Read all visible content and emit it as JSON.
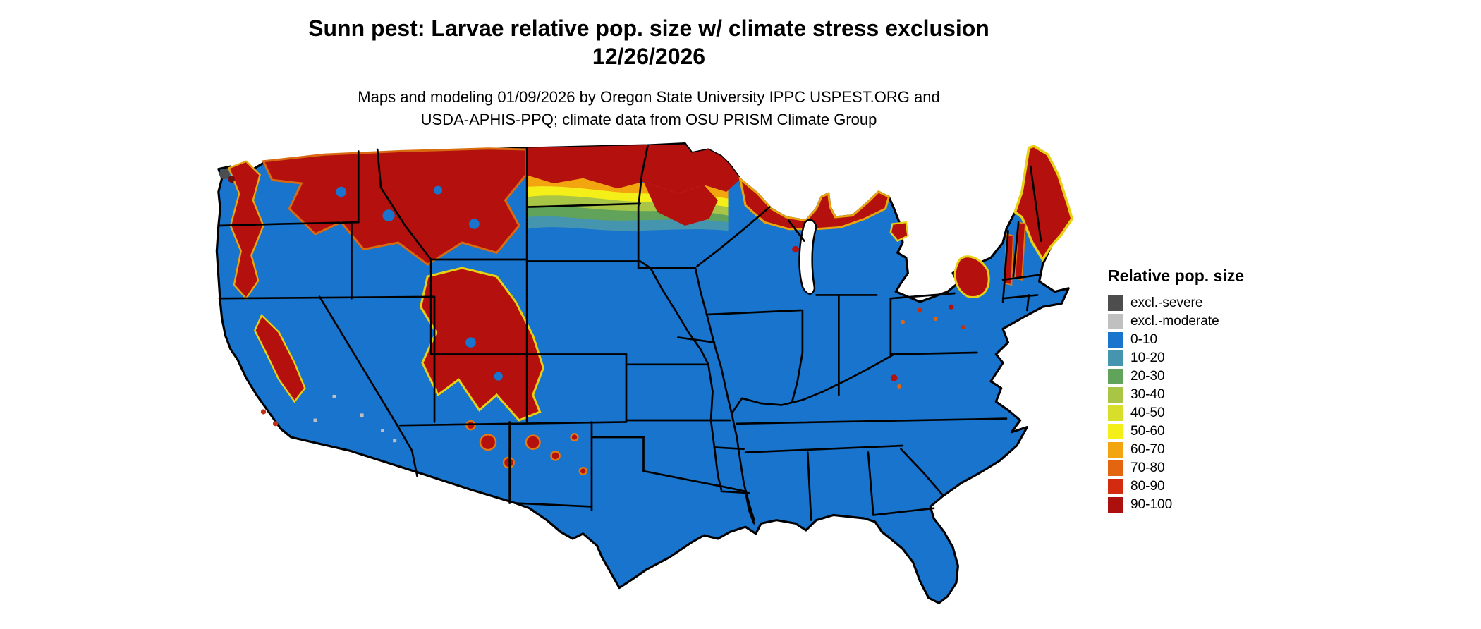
{
  "title": {
    "line1": "Sunn pest: Larvae relative pop. size w/ climate stress exclusion",
    "line2": "12/26/2026"
  },
  "subtitle": {
    "line1": "Maps and modeling 01/09/2026 by Oregon State University IPPC USPEST.ORG and",
    "line2": "USDA-APHIS-PPQ; climate data from OSU PRISM Climate Group"
  },
  "legend": {
    "title": "Relative pop. size",
    "items": [
      {
        "label": "excl.-severe",
        "color": "#4d4d4d"
      },
      {
        "label": "excl.-moderate",
        "color": "#c0c0c0"
      },
      {
        "label": "0-10",
        "color": "#1874cd"
      },
      {
        "label": "10-20",
        "color": "#4695af"
      },
      {
        "label": "20-30",
        "color": "#62a35b"
      },
      {
        "label": "30-40",
        "color": "#a8c545"
      },
      {
        "label": "40-50",
        "color": "#d7df2b"
      },
      {
        "label": "50-60",
        "color": "#f4ee19"
      },
      {
        "label": "60-70",
        "color": "#f2a50e"
      },
      {
        "label": "70-80",
        "color": "#e4650f"
      },
      {
        "label": "80-90",
        "color": "#d22b10"
      },
      {
        "label": "90-100",
        "color": "#ab0f0e"
      }
    ]
  },
  "map": {
    "region": "Contiguous United States",
    "base_color": "#1874cd",
    "outline_color": "#000000",
    "background_color": "#ffffff"
  }
}
